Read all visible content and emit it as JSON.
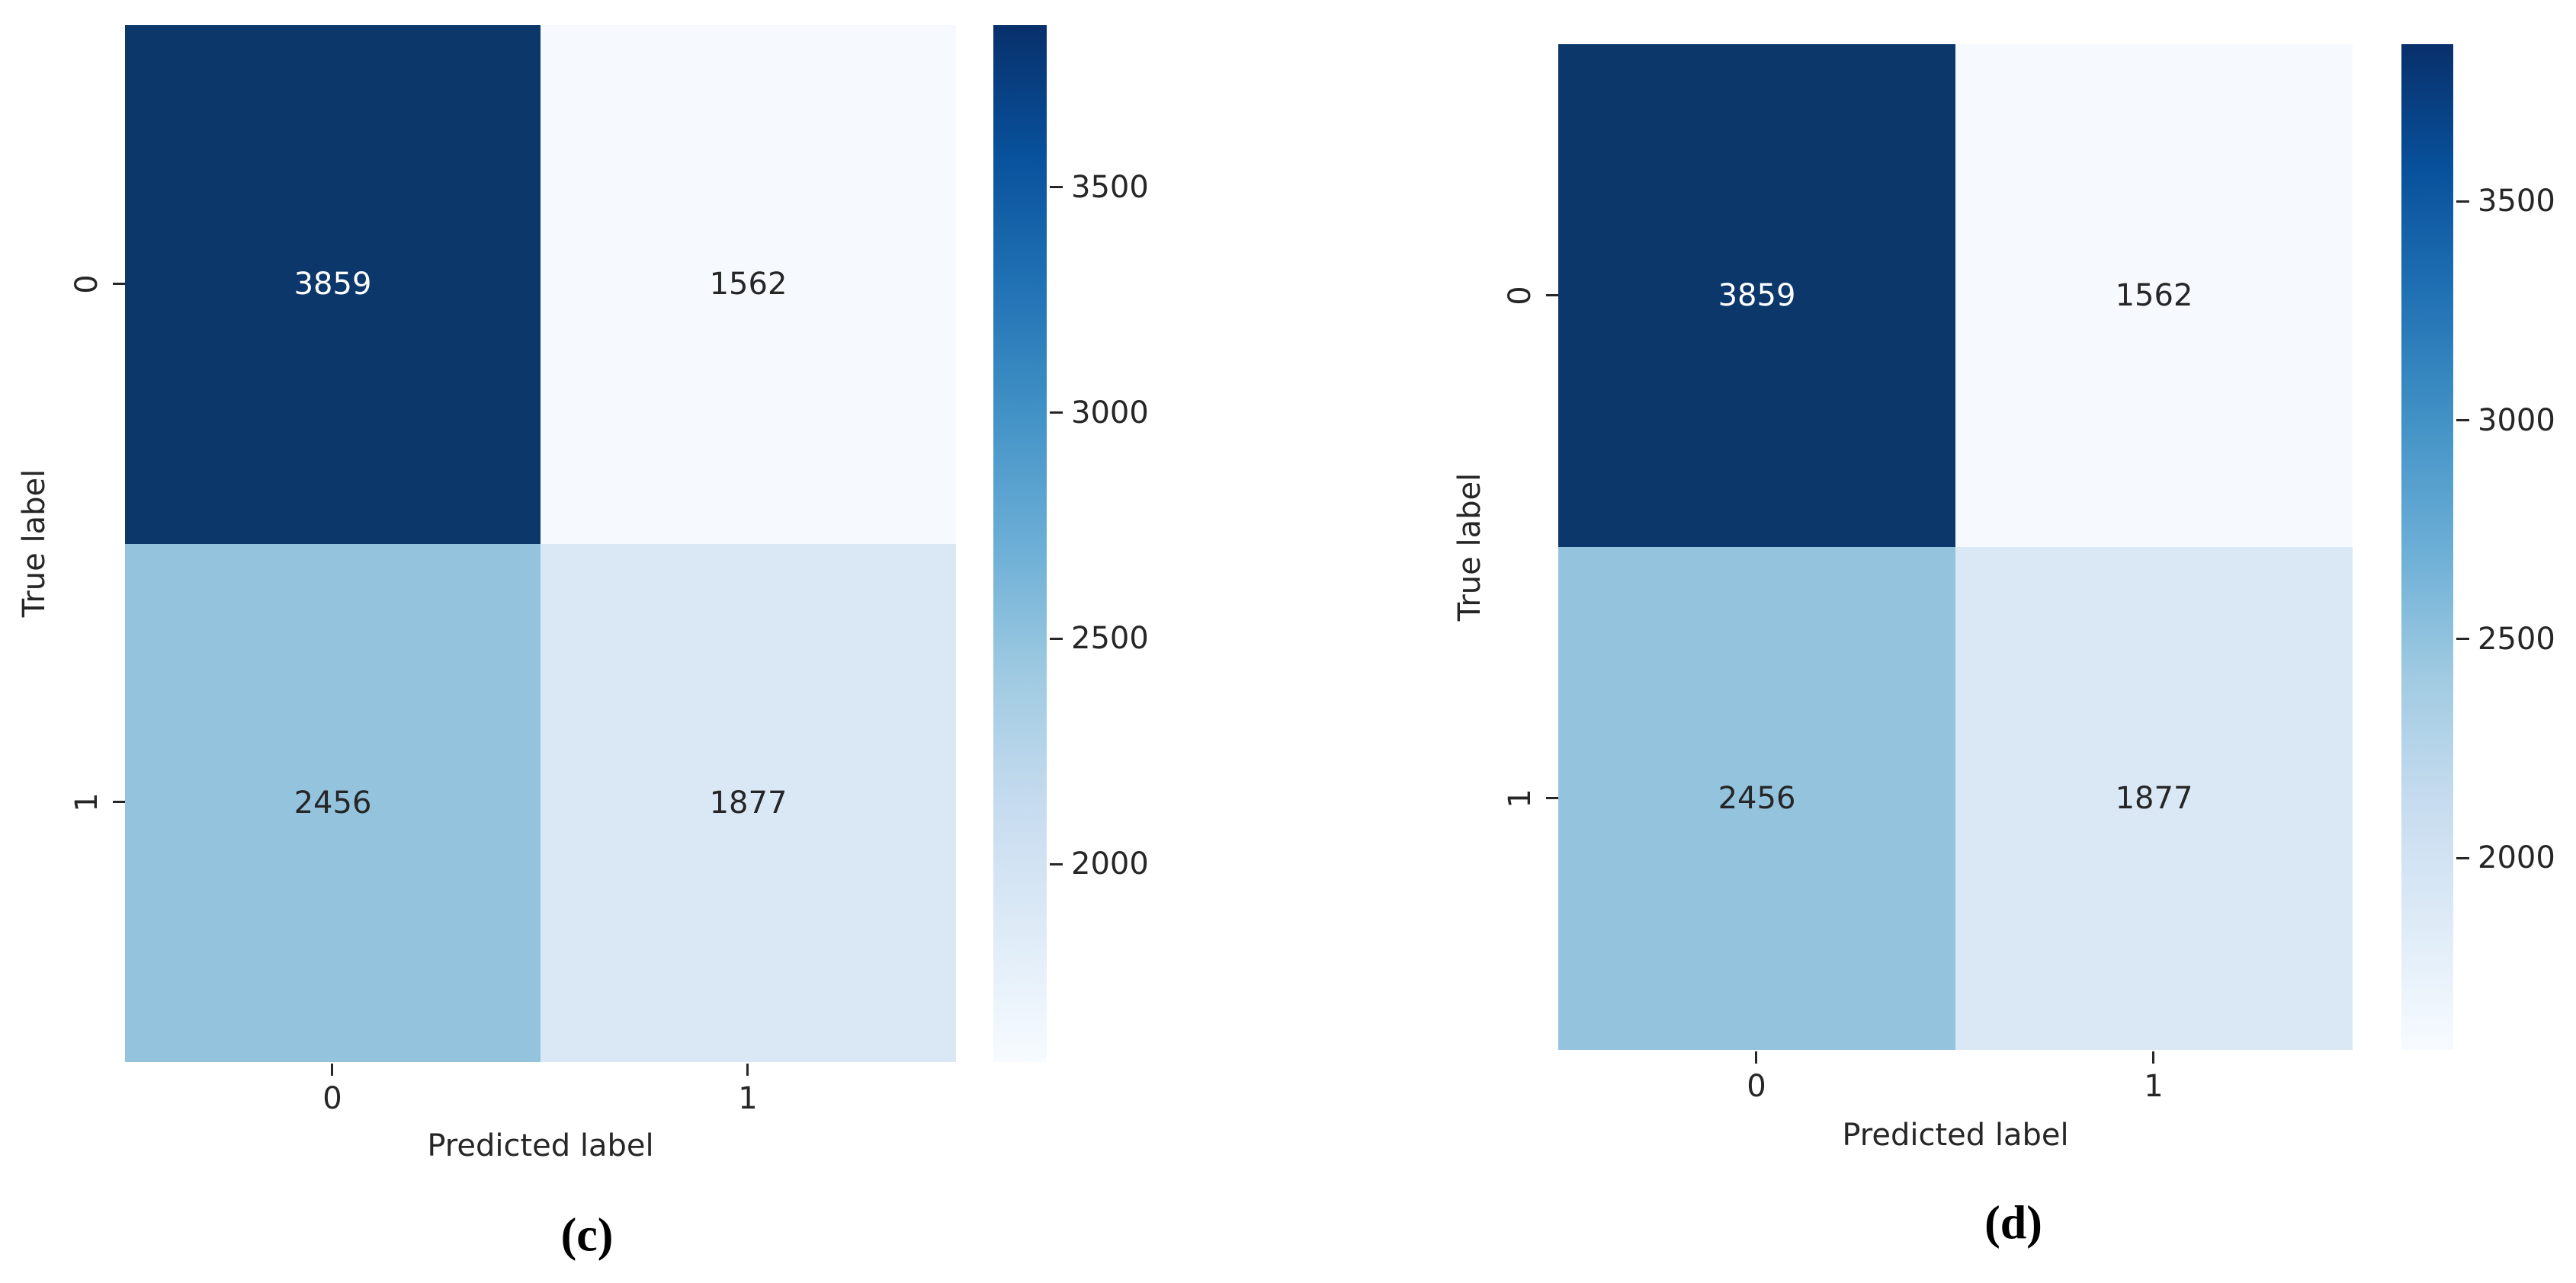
{
  "figure": {
    "background": "#ffffff",
    "text_color": "#262626",
    "panels": [
      {
        "caption": "(c)",
        "xlabel": "Predicted label",
        "ylabel": "True label",
        "x_ticklabels": [
          "0",
          "1"
        ],
        "y_ticklabels": [
          "0",
          "1"
        ],
        "cells": [
          {
            "value": "3859",
            "bg": "#0b376b",
            "fg": "#ffffff"
          },
          {
            "value": "1562",
            "bg": "#f6fafe",
            "fg": "#262626"
          },
          {
            "value": "2456",
            "bg": "#94c3de",
            "fg": "#262626"
          },
          {
            "value": "1877",
            "bg": "#dae8f5",
            "fg": "#262626"
          }
        ]
      },
      {
        "caption": "(d)",
        "xlabel": "Predicted label",
        "ylabel": "True label",
        "x_ticklabels": [
          "0",
          "1"
        ],
        "y_ticklabels": [
          "0",
          "1"
        ],
        "cells": [
          {
            "value": "3859",
            "bg": "#0b376b",
            "fg": "#ffffff"
          },
          {
            "value": "1562",
            "bg": "#f6fafe",
            "fg": "#262626"
          },
          {
            "value": "2456",
            "bg": "#94c3de",
            "fg": "#262626"
          },
          {
            "value": "1877",
            "bg": "#dae8f5",
            "fg": "#262626"
          }
        ]
      }
    ],
    "colorbar": {
      "vmin": 1562,
      "vmax": 3859,
      "tick_values": [
        3500,
        3000,
        2500,
        2000
      ],
      "gradient": [
        "#08306b",
        "#08519c",
        "#2171b5",
        "#4292c6",
        "#6baed6",
        "#9ecae1",
        "#c6dbef",
        "#deebf7",
        "#f7fbff"
      ]
    }
  },
  "chart_data": [
    {
      "type": "heatmap",
      "title": "(c)",
      "xlabel": "Predicted label",
      "ylabel": "True label",
      "x_categories": [
        "0",
        "1"
      ],
      "y_categories": [
        "0",
        "1"
      ],
      "values": [
        [
          3859,
          1562
        ],
        [
          2456,
          1877
        ]
      ],
      "annotations": [
        [
          "3859",
          "1562"
        ],
        [
          "2456",
          "1877"
        ]
      ],
      "colormap": "Blues",
      "vmin": 1562,
      "vmax": 3859,
      "colorbar_ticks": [
        2000,
        2500,
        3000,
        3500
      ],
      "legend_position": "right-colorbar",
      "grid": false
    },
    {
      "type": "heatmap",
      "title": "(d)",
      "xlabel": "Predicted label",
      "ylabel": "True label",
      "x_categories": [
        "0",
        "1"
      ],
      "y_categories": [
        "0",
        "1"
      ],
      "values": [
        [
          3859,
          1562
        ],
        [
          2456,
          1877
        ]
      ],
      "annotations": [
        [
          "3859",
          "1562"
        ],
        [
          "2456",
          "1877"
        ]
      ],
      "colormap": "Blues",
      "vmin": 1562,
      "vmax": 3859,
      "colorbar_ticks": [
        2000,
        2500,
        3000,
        3500
      ],
      "legend_position": "right-colorbar",
      "grid": false
    }
  ]
}
